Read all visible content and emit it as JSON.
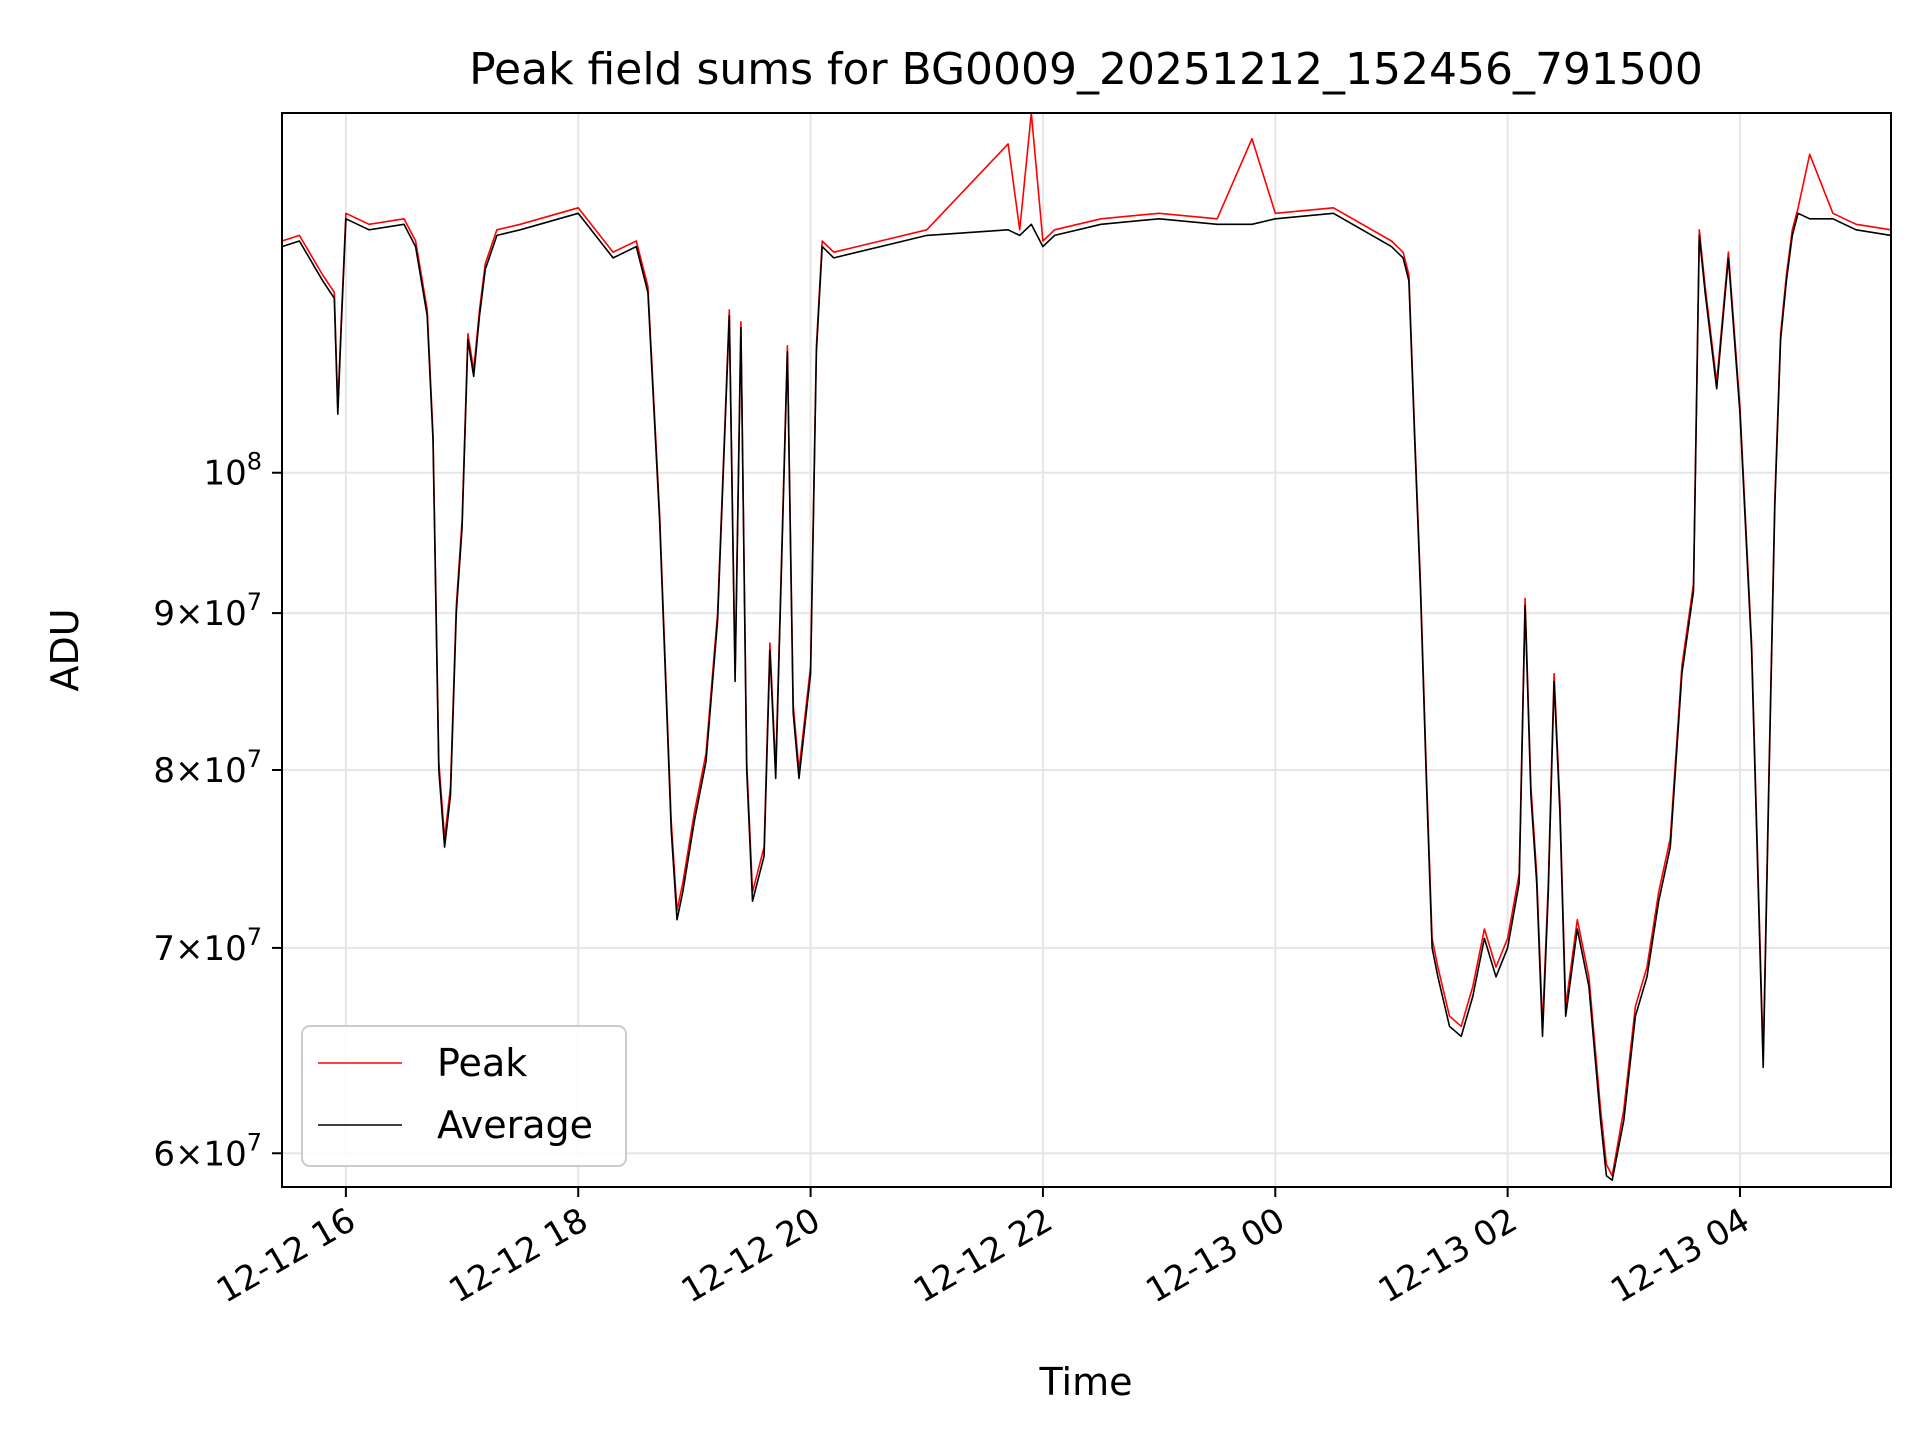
{
  "chart_data": {
    "type": "line",
    "title": "Peak field sums for BG0009_20251212_152456_791500",
    "xlabel": "Time",
    "ylabel": "ADU",
    "y_scale": "log",
    "ylim": [
      58500000,
      131000000
    ],
    "xlim_hours": [
      15.45,
      29.3
    ],
    "grid": true,
    "legend_position": "lower-left",
    "x_ticks": [
      {
        "value": 16,
        "label": "12-12 16"
      },
      {
        "value": 18,
        "label": "12-12 18"
      },
      {
        "value": 20,
        "label": "12-12 20"
      },
      {
        "value": 22,
        "label": "12-12 22"
      },
      {
        "value": 24,
        "label": "12-13 00"
      },
      {
        "value": 26,
        "label": "12-13 02"
      },
      {
        "value": 28,
        "label": "12-13 04"
      }
    ],
    "y_ticks": [
      {
        "value": 60000000,
        "base": "6",
        "exp": "7"
      },
      {
        "value": 70000000,
        "base": "7",
        "exp": "7"
      },
      {
        "value": 80000000,
        "base": "8",
        "exp": "7"
      },
      {
        "value": 90000000,
        "base": "9",
        "exp": "7"
      },
      {
        "value": 100000000,
        "base": "10",
        "exp": "8"
      }
    ],
    "series": [
      {
        "name": "Peak",
        "color": "#ff0000"
      },
      {
        "name": "Average",
        "color": "#000000"
      }
    ],
    "x_hours": [
      15.45,
      15.6,
      15.8,
      15.9,
      15.93,
      15.96,
      16.0,
      16.2,
      16.5,
      16.6,
      16.7,
      16.75,
      16.8,
      16.85,
      16.9,
      16.95,
      17.0,
      17.05,
      17.1,
      17.15,
      17.2,
      17.3,
      17.5,
      18.0,
      18.3,
      18.5,
      18.6,
      18.7,
      18.8,
      18.85,
      18.9,
      19.0,
      19.1,
      19.2,
      19.3,
      19.35,
      19.4,
      19.45,
      19.5,
      19.6,
      19.65,
      19.7,
      19.8,
      19.85,
      19.9,
      20.0,
      20.05,
      20.1,
      20.2,
      20.4,
      21.0,
      21.7,
      21.8,
      21.9,
      22.0,
      22.1,
      22.5,
      23.0,
      23.5,
      23.8,
      24.0,
      24.5,
      25.0,
      25.1,
      25.15,
      25.2,
      25.25,
      25.3,
      25.35,
      25.4,
      25.5,
      25.6,
      25.7,
      25.8,
      25.9,
      26.0,
      26.1,
      26.15,
      26.2,
      26.25,
      26.3,
      26.35,
      26.4,
      26.45,
      26.5,
      26.6,
      26.7,
      26.8,
      26.85,
      26.9,
      27.0,
      27.1,
      27.2,
      27.3,
      27.4,
      27.5,
      27.6,
      27.65,
      27.7,
      27.8,
      27.9,
      28.0,
      28.1,
      28.2,
      28.25,
      28.3,
      28.35,
      28.4,
      28.45,
      28.5,
      28.6,
      28.8,
      29.0,
      29.3
    ],
    "peak_values": [
      119000000,
      119500000,
      116000000,
      114500000,
      105000000,
      112000000,
      121500000,
      120500000,
      121000000,
      119000000,
      113000000,
      103000000,
      80500000,
      76000000,
      79000000,
      90500000,
      96500000,
      111000000,
      108000000,
      113000000,
      117000000,
      120000000,
      120500000,
      122000000,
      118000000,
      119000000,
      115000000,
      97000000,
      77000000,
      72000000,
      73500000,
      77500000,
      81000000,
      90000000,
      113000000,
      86000000,
      112000000,
      80500000,
      73000000,
      75500000,
      88000000,
      80000000,
      110000000,
      84000000,
      80000000,
      86500000,
      110000000,
      119000000,
      118000000,
      118500000,
      120000000,
      128000000,
      120000000,
      131000000,
      119000000,
      120000000,
      121000000,
      121500000,
      121000000,
      128500000,
      121500000,
      122000000,
      119000000,
      118000000,
      116000000,
      103000000,
      92000000,
      80000000,
      70500000,
      69000000,
      66500000,
      66000000,
      68000000,
      71000000,
      69000000,
      70500000,
      74000000,
      91000000,
      79000000,
      74000000,
      66000000,
      73500000,
      86000000,
      78000000,
      67000000,
      71500000,
      68500000,
      62000000,
      59500000,
      59000000,
      62000000,
      67000000,
      69000000,
      73000000,
      76000000,
      86500000,
      92000000,
      120000000,
      115000000,
      107000000,
      118000000,
      105000000,
      88000000,
      64500000,
      80000000,
      98000000,
      111000000,
      116000000,
      120000000,
      122000000,
      127000000,
      121500000,
      120500000,
      120000000
    ],
    "average_values": [
      118500000,
      119000000,
      115500000,
      114000000,
      104500000,
      111500000,
      121000000,
      120000000,
      120500000,
      118500000,
      112500000,
      102500000,
      80000000,
      75500000,
      78500000,
      90000000,
      96000000,
      110500000,
      107500000,
      112500000,
      116500000,
      119500000,
      120000000,
      121500000,
      117500000,
      118500000,
      114500000,
      96500000,
      76500000,
      71500000,
      73000000,
      77000000,
      80500000,
      89500000,
      112500000,
      85500000,
      111500000,
      80000000,
      72500000,
      75000000,
      87500000,
      79500000,
      109500000,
      83500000,
      79500000,
      86000000,
      109500000,
      118500000,
      117500000,
      118000000,
      119500000,
      120000000,
      119500000,
      120500000,
      118500000,
      119500000,
      120500000,
      121000000,
      120500000,
      120500000,
      121000000,
      121500000,
      118500000,
      117500000,
      115500000,
      102500000,
      91500000,
      79500000,
      70000000,
      68500000,
      66000000,
      65500000,
      67500000,
      70500000,
      68500000,
      70000000,
      73500000,
      90500000,
      78500000,
      73500000,
      65500000,
      73000000,
      85500000,
      77500000,
      66500000,
      71000000,
      68000000,
      61500000,
      59000000,
      58800000,
      61500000,
      66500000,
      68500000,
      72500000,
      75500000,
      86000000,
      91500000,
      119500000,
      114500000,
      106500000,
      117500000,
      104500000,
      87500000,
      64000000,
      79500000,
      97500000,
      110500000,
      115500000,
      119500000,
      121500000,
      121000000,
      121000000,
      120000000,
      119500000
    ]
  }
}
